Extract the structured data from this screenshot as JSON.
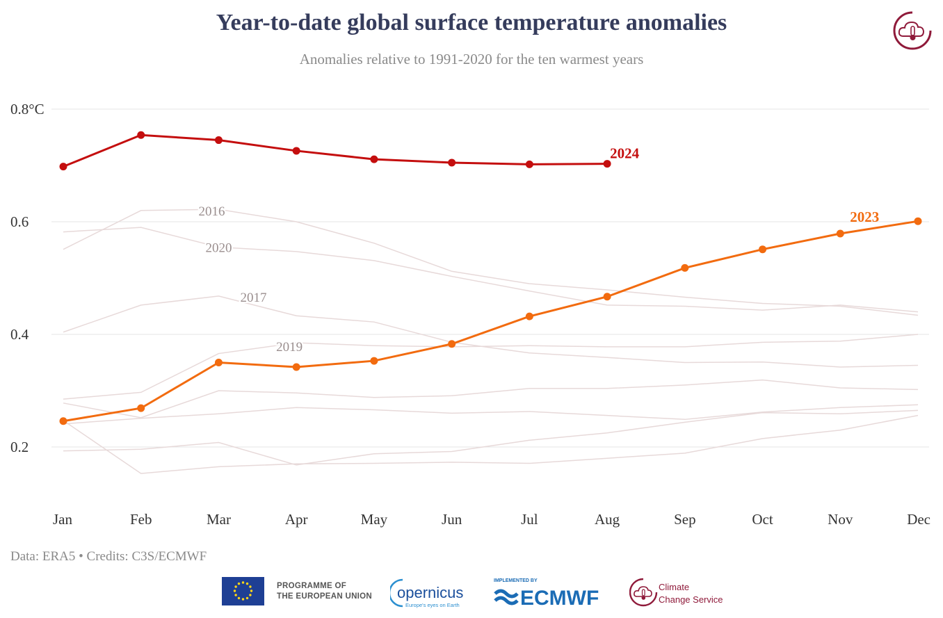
{
  "header": {
    "title": "Year-to-date global surface temperature anomalies",
    "subtitle": "Anomalies relative to 1991-2020 for the ten warmest years"
  },
  "footer": {
    "credits": "Data: ERA5 • Credits: C3S/ECMWF",
    "eu_line1": "PROGRAMME OF",
    "eu_line2": "THE EUROPEAN UNION",
    "copernicus_name": "opernicus",
    "copernicus_tagline": "Europe's eyes on Earth",
    "ecmwf_small": "IMPLEMENTED BY",
    "ecmwf_name": "ECMWF",
    "ccs_line1": "Climate",
    "ccs_line2": "Change Service"
  },
  "colors": {
    "y2024": "#c40e0e",
    "y2023": "#f26b0f",
    "background_series": "#e7d9d9",
    "background_label": "#9a8e8e",
    "grid": "#e6e6e6",
    "title": "#353c5c",
    "brand": "#8f1a3a"
  },
  "chart_data": {
    "type": "line",
    "title": "Year-to-date global surface temperature anomalies",
    "subtitle": "Anomalies relative to 1991-2020 for the ten warmest years",
    "xlabel": "",
    "ylabel": "",
    "categories": [
      "Jan",
      "Feb",
      "Mar",
      "Apr",
      "May",
      "Jun",
      "Jul",
      "Aug",
      "Sep",
      "Oct",
      "Nov",
      "Dec"
    ],
    "ylim": [
      0.09,
      0.82
    ],
    "yticks": [
      0.2,
      0.4,
      0.6,
      0.8
    ],
    "ytick_labels": [
      "0.2",
      "0.4",
      "0.6",
      "0.8°C"
    ],
    "grid": true,
    "highlight_series": [
      {
        "name": "2024",
        "label": "2024",
        "color": "#c40e0e",
        "markers": true,
        "values": [
          0.698,
          0.754,
          0.745,
          0.726,
          0.711,
          0.705,
          0.702,
          0.703
        ]
      },
      {
        "name": "2023",
        "label": "2023",
        "color": "#f26b0f",
        "markers": true,
        "values": [
          0.246,
          0.269,
          0.35,
          0.342,
          0.353,
          0.383,
          0.432,
          0.467,
          0.518,
          0.551,
          0.579,
          0.601
        ]
      }
    ],
    "background_series": [
      {
        "name": "2016",
        "label": "2016",
        "values": [
          0.551,
          0.62,
          0.622,
          0.6,
          0.562,
          0.512,
          0.49,
          0.479,
          0.466,
          0.455,
          0.45,
          0.434
        ]
      },
      {
        "name": "2020",
        "label": "2020",
        "values": [
          0.582,
          0.59,
          0.555,
          0.547,
          0.531,
          0.503,
          0.477,
          0.452,
          0.45,
          0.443,
          0.452,
          0.44
        ]
      },
      {
        "name": "2017",
        "label": "2017",
        "values": [
          0.404,
          0.452,
          0.468,
          0.433,
          0.422,
          0.386,
          0.367,
          0.359,
          0.35,
          0.351,
          0.342,
          0.345
        ]
      },
      {
        "name": "2019",
        "label": "2019",
        "values": [
          0.285,
          0.297,
          0.366,
          0.385,
          0.38,
          0.378,
          0.38,
          0.378,
          0.378,
          0.386,
          0.388,
          0.4
        ]
      },
      {
        "name": "",
        "label": "",
        "values": [
          0.278,
          0.252,
          0.3,
          0.296,
          0.288,
          0.291,
          0.304,
          0.304,
          0.31,
          0.319,
          0.305,
          0.302
        ]
      },
      {
        "name": "",
        "label": "",
        "values": [
          0.241,
          0.251,
          0.259,
          0.27,
          0.266,
          0.26,
          0.263,
          0.256,
          0.249,
          0.262,
          0.27,
          0.275
        ]
      },
      {
        "name": "",
        "label": "",
        "values": [
          0.247,
          0.153,
          0.165,
          0.17,
          0.171,
          0.173,
          0.171,
          0.18,
          0.189,
          0.215,
          0.23,
          0.256
        ]
      },
      {
        "name": "",
        "label": "",
        "values": [
          0.193,
          0.196,
          0.208,
          0.168,
          0.188,
          0.192,
          0.212,
          0.225,
          0.244,
          0.261,
          0.259,
          0.265
        ]
      }
    ]
  }
}
